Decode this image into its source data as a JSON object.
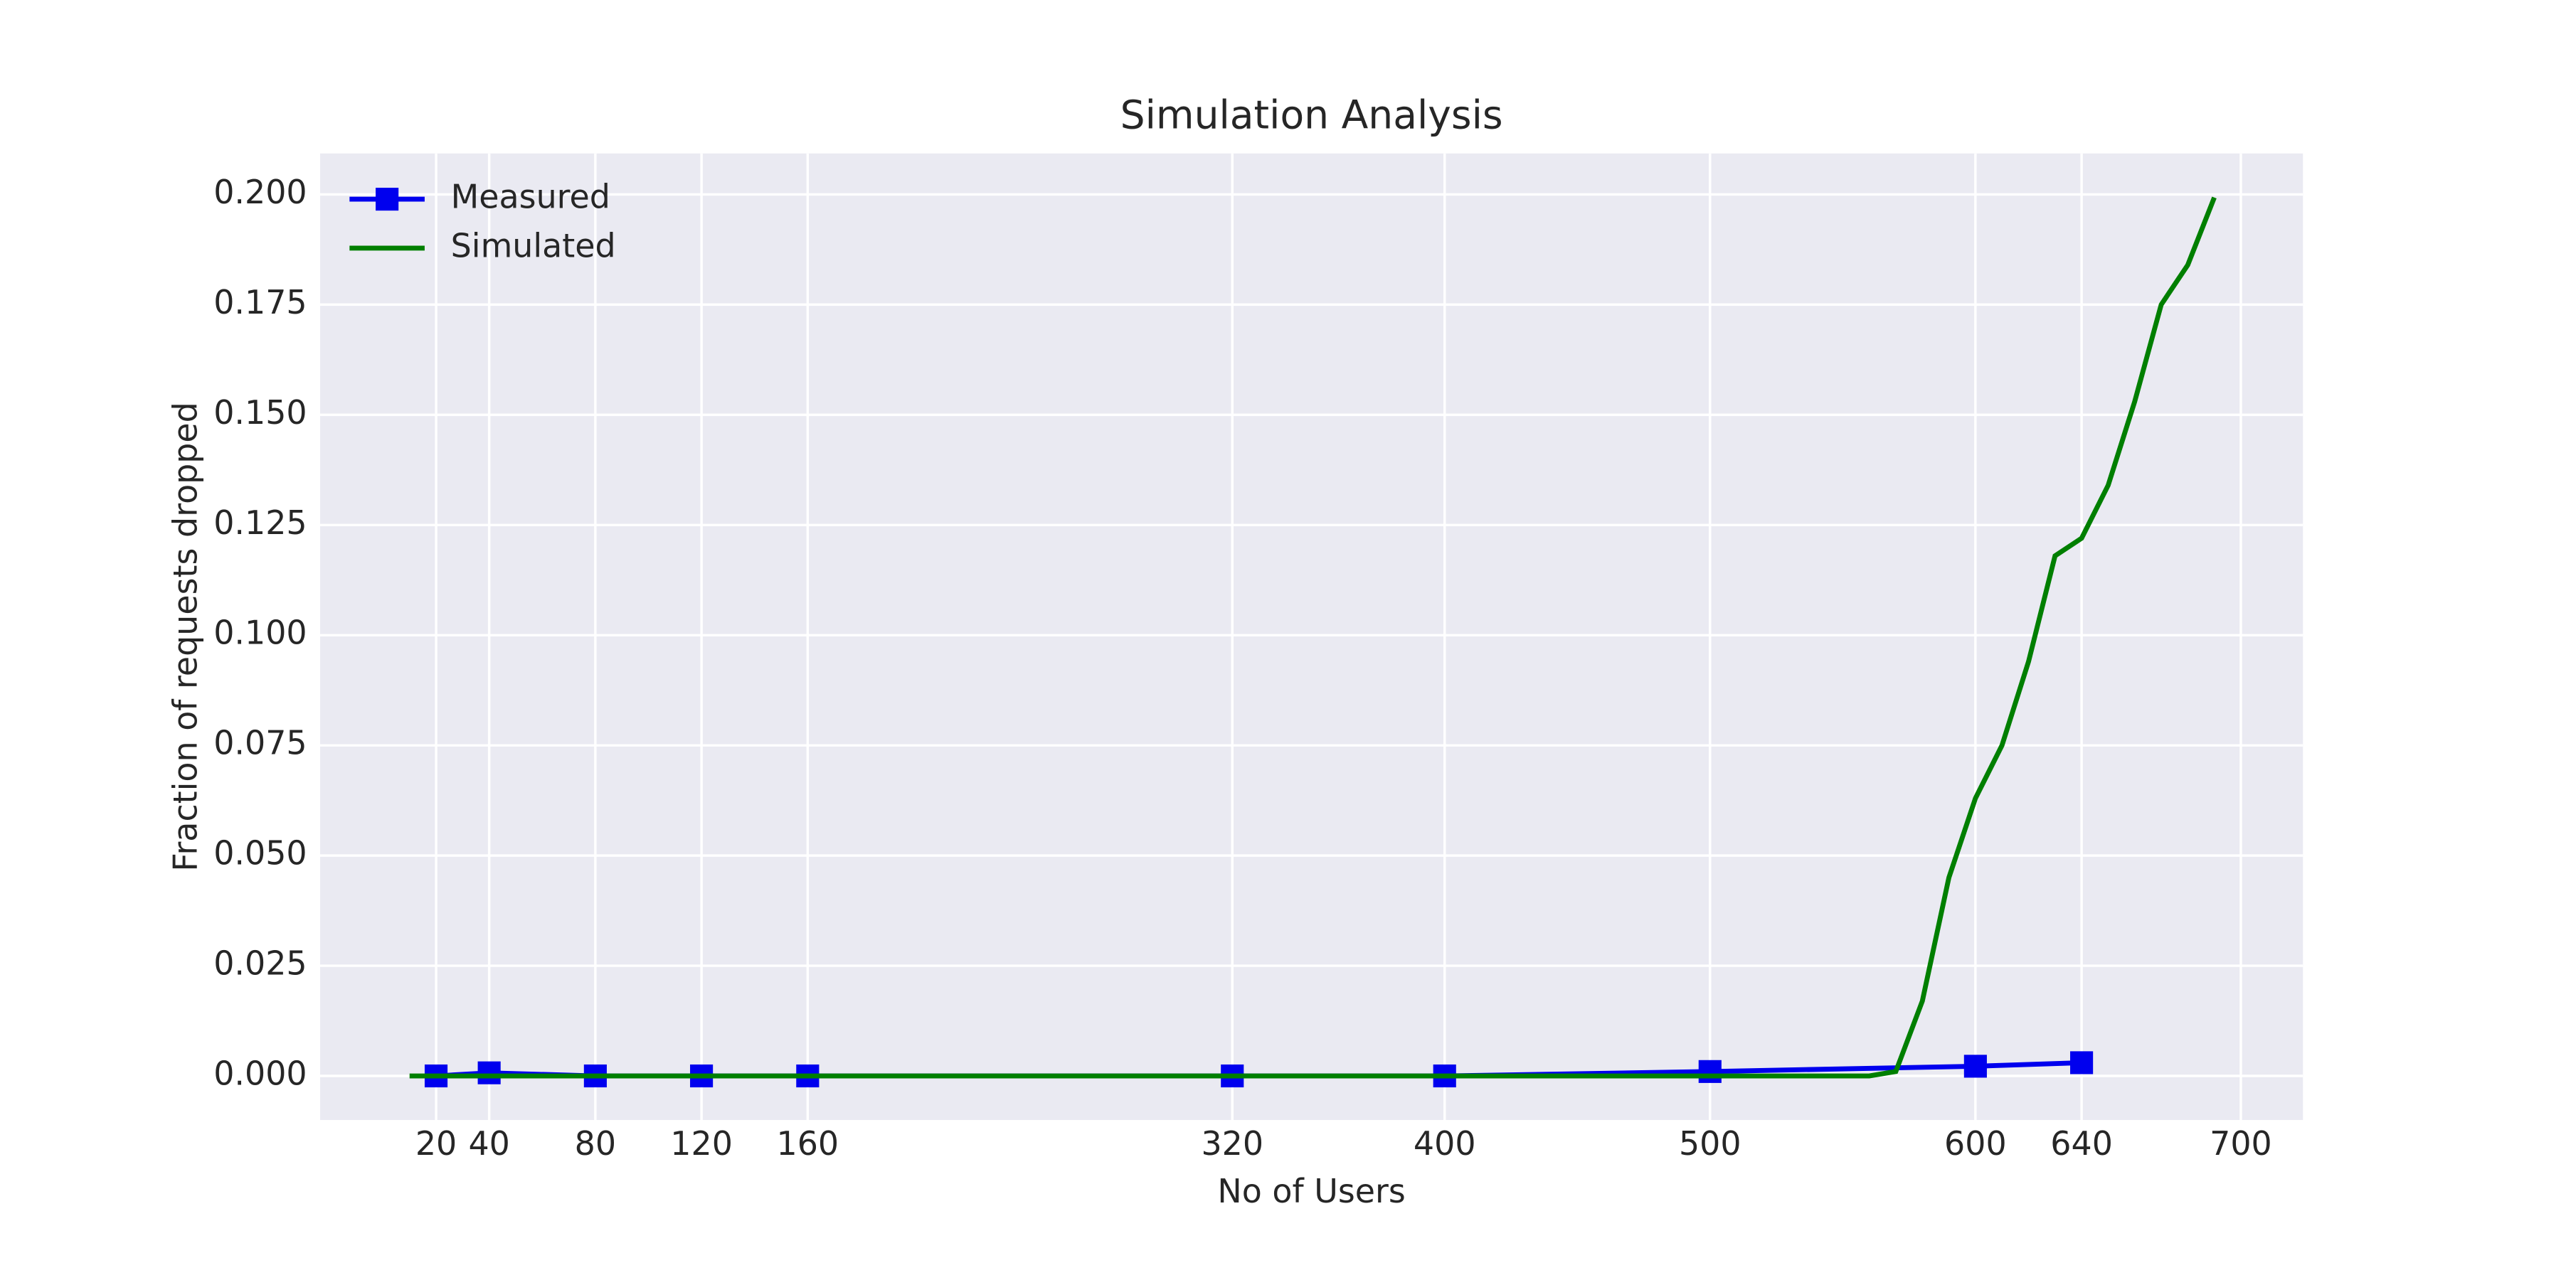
{
  "chart_data": {
    "type": "line",
    "title": "Simulation Analysis",
    "x_label": "No of Users",
    "y_label": "Fraction of requests dropped",
    "xlim": [
      -23.7,
      723.4
    ],
    "ylim": [
      -0.01,
      0.2093
    ],
    "xticks": [
      20,
      40,
      80,
      120,
      160,
      320,
      400,
      500,
      600,
      640,
      700
    ],
    "yticks": [
      {
        "value": 0,
        "label": "0.000"
      },
      {
        "value": 0.025,
        "label": "0.025"
      },
      {
        "value": 0.05,
        "label": "0.050"
      },
      {
        "value": 0.075,
        "label": "0.075"
      },
      {
        "value": 0.1,
        "label": "0.100"
      },
      {
        "value": 0.125,
        "label": "0.125"
      },
      {
        "value": 0.15,
        "label": "0.150"
      },
      {
        "value": 0.175,
        "label": "0.175"
      },
      {
        "value": 0.2,
        "label": "0.200"
      }
    ],
    "grid": true,
    "legend": "upper left",
    "series": [
      {
        "name": "Measured",
        "color": "#0000ee",
        "marker": "square",
        "x": [
          20,
          40,
          80,
          120,
          160,
          320,
          400,
          500,
          600,
          640
        ],
        "values": [
          0,
          0.0007,
          0,
          0,
          0,
          0,
          0,
          0.001,
          0.0022,
          0.003
        ]
      },
      {
        "name": "Simulated",
        "color": "#007f00",
        "x": [
          10,
          100,
          200,
          300,
          400,
          500,
          560,
          570,
          580,
          590,
          600,
          610,
          620,
          630,
          640,
          650,
          660,
          670,
          680,
          690
        ],
        "values": [
          0,
          0,
          0,
          0,
          0,
          0,
          0,
          0.001,
          0.017,
          0.045,
          0.063,
          0.075,
          0.094,
          0.118,
          0.122,
          0.134,
          0.153,
          0.175,
          0.184,
          0.1993
        ]
      }
    ]
  }
}
